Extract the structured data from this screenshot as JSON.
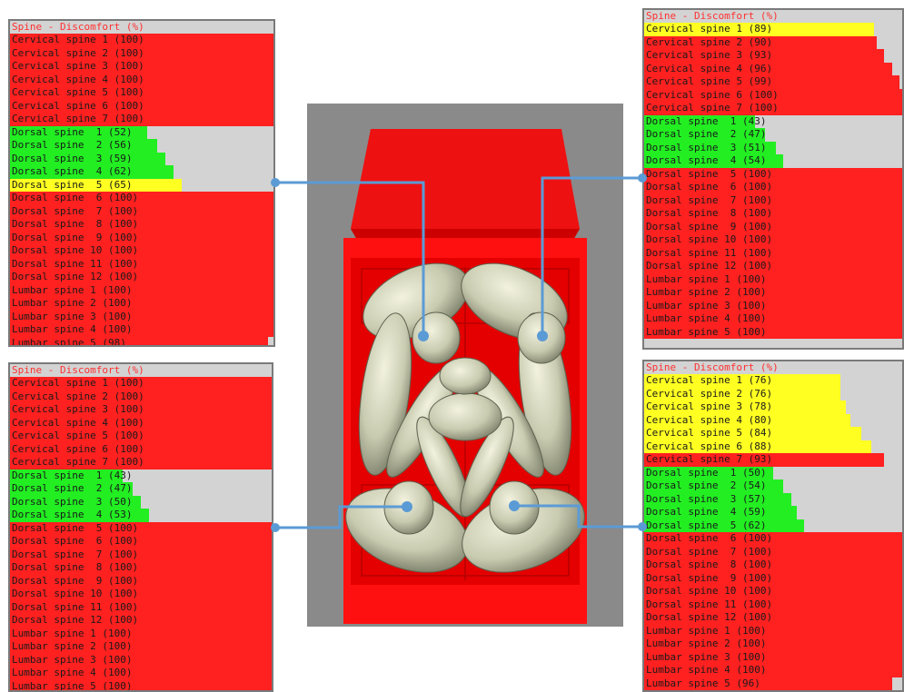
{
  "colors": {
    "red": "#ff2020",
    "yellow": "#ffff22",
    "green": "#22ee22",
    "title_text": "#ff3030",
    "panel_bg": "#d3d3d3",
    "connector": "#5b9bd5",
    "scene_bg": "#8a8a8a"
  },
  "panels": [
    {
      "title": "Spine - Discomfort (%)",
      "rows": [
        {
          "label": "Cervical spine 1 (100)",
          "value": 100
        },
        {
          "label": "Cervical spine 2 (100)",
          "value": 100
        },
        {
          "label": "Cervical spine 3 (100)",
          "value": 100
        },
        {
          "label": "Cervical spine 4 (100)",
          "value": 100
        },
        {
          "label": "Cervical spine 5 (100)",
          "value": 100
        },
        {
          "label": "Cervical spine 6 (100)",
          "value": 100
        },
        {
          "label": "Cervical spine 7 (100)",
          "value": 100
        },
        {
          "label": "Dorsal spine  1 (52)",
          "value": 52
        },
        {
          "label": "Dorsal spine  2 (56)",
          "value": 56
        },
        {
          "label": "Dorsal spine  3 (59)",
          "value": 59
        },
        {
          "label": "Dorsal spine  4 (62)",
          "value": 62
        },
        {
          "label": "Dorsal spine  5 (65)",
          "value": 65
        },
        {
          "label": "Dorsal spine  6 (100)",
          "value": 100
        },
        {
          "label": "Dorsal spine  7 (100)",
          "value": 100
        },
        {
          "label": "Dorsal spine  8 (100)",
          "value": 100
        },
        {
          "label": "Dorsal spine  9 (100)",
          "value": 100
        },
        {
          "label": "Dorsal spine 10 (100)",
          "value": 100
        },
        {
          "label": "Dorsal spine 11 (100)",
          "value": 100
        },
        {
          "label": "Dorsal spine 12 (100)",
          "value": 100
        },
        {
          "label": "Lumbar spine 1 (100)",
          "value": 100
        },
        {
          "label": "Lumbar spine 2 (100)",
          "value": 100
        },
        {
          "label": "Lumbar spine 3 (100)",
          "value": 100
        },
        {
          "label": "Lumbar spine 4 (100)",
          "value": 100
        },
        {
          "label": "Lumbar spine 5 (98)",
          "value": 98
        }
      ]
    },
    {
      "title": "Spine - Discomfort (%)",
      "rows": [
        {
          "label": "Cervical spine 1 (89)",
          "value": 89
        },
        {
          "label": "Cervical spine 2 (90)",
          "value": 90
        },
        {
          "label": "Cervical spine 3 (93)",
          "value": 93
        },
        {
          "label": "Cervical spine 4 (96)",
          "value": 96
        },
        {
          "label": "Cervical spine 5 (99)",
          "value": 99
        },
        {
          "label": "Cervical spine 6 (100)",
          "value": 100
        },
        {
          "label": "Cervical spine 7 (100)",
          "value": 100
        },
        {
          "label": "Dorsal spine  1 (43)",
          "value": 43
        },
        {
          "label": "Dorsal spine  2 (47)",
          "value": 47
        },
        {
          "label": "Dorsal spine  3 (51)",
          "value": 51
        },
        {
          "label": "Dorsal spine  4 (54)",
          "value": 54
        },
        {
          "label": "Dorsal spine  5 (100)",
          "value": 100
        },
        {
          "label": "Dorsal spine  6 (100)",
          "value": 100
        },
        {
          "label": "Dorsal spine  7 (100)",
          "value": 100
        },
        {
          "label": "Dorsal spine  8 (100)",
          "value": 100
        },
        {
          "label": "Dorsal spine  9 (100)",
          "value": 100
        },
        {
          "label": "Dorsal spine 10 (100)",
          "value": 100
        },
        {
          "label": "Dorsal spine 11 (100)",
          "value": 100
        },
        {
          "label": "Dorsal spine 12 (100)",
          "value": 100
        },
        {
          "label": "Lumbar spine 1 (100)",
          "value": 100
        },
        {
          "label": "Lumbar spine 2 (100)",
          "value": 100
        },
        {
          "label": "Lumbar spine 3 (100)",
          "value": 100
        },
        {
          "label": "Lumbar spine 4 (100)",
          "value": 100
        },
        {
          "label": "Lumbar spine 5 (100)",
          "value": 100
        }
      ]
    },
    {
      "title": "Spine - Discomfort (%)",
      "rows": [
        {
          "label": "Cervical spine 1 (100)",
          "value": 100
        },
        {
          "label": "Cervical spine 2 (100)",
          "value": 100
        },
        {
          "label": "Cervical spine 3 (100)",
          "value": 100
        },
        {
          "label": "Cervical spine 4 (100)",
          "value": 100
        },
        {
          "label": "Cervical spine 5 (100)",
          "value": 100
        },
        {
          "label": "Cervical spine 6 (100)",
          "value": 100
        },
        {
          "label": "Cervical spine 7 (100)",
          "value": 100
        },
        {
          "label": "Dorsal spine  1 (43)",
          "value": 43
        },
        {
          "label": "Dorsal spine  2 (47)",
          "value": 47
        },
        {
          "label": "Dorsal spine  3 (50)",
          "value": 50
        },
        {
          "label": "Dorsal spine  4 (53)",
          "value": 53
        },
        {
          "label": "Dorsal spine  5 (100)",
          "value": 100
        },
        {
          "label": "Dorsal spine  6 (100)",
          "value": 100
        },
        {
          "label": "Dorsal spine  7 (100)",
          "value": 100
        },
        {
          "label": "Dorsal spine  8 (100)",
          "value": 100
        },
        {
          "label": "Dorsal spine  9 (100)",
          "value": 100
        },
        {
          "label": "Dorsal spine 10 (100)",
          "value": 100
        },
        {
          "label": "Dorsal spine 11 (100)",
          "value": 100
        },
        {
          "label": "Dorsal spine 12 (100)",
          "value": 100
        },
        {
          "label": "Lumbar spine 1 (100)",
          "value": 100
        },
        {
          "label": "Lumbar spine 2 (100)",
          "value": 100
        },
        {
          "label": "Lumbar spine 3 (100)",
          "value": 100
        },
        {
          "label": "Lumbar spine 4 (100)",
          "value": 100
        },
        {
          "label": "Lumbar spine 5 (100)",
          "value": 100
        }
      ]
    },
    {
      "title": "Spine - Discomfort (%)",
      "rows": [
        {
          "label": "Cervical spine 1 (76)",
          "value": 76
        },
        {
          "label": "Cervical spine 2 (76)",
          "value": 76
        },
        {
          "label": "Cervical spine 3 (78)",
          "value": 78
        },
        {
          "label": "Cervical spine 4 (80)",
          "value": 80
        },
        {
          "label": "Cervical spine 5 (84)",
          "value": 84
        },
        {
          "label": "Cervical spine 6 (88)",
          "value": 88
        },
        {
          "label": "Cervical spine 7 (93)",
          "value": 93
        },
        {
          "label": "Dorsal spine  1 (50)",
          "value": 50
        },
        {
          "label": "Dorsal spine  2 (54)",
          "value": 54
        },
        {
          "label": "Dorsal spine  3 (57)",
          "value": 57
        },
        {
          "label": "Dorsal spine  4 (59)",
          "value": 59
        },
        {
          "label": "Dorsal spine  5 (62)",
          "value": 62
        },
        {
          "label": "Dorsal spine  6 (100)",
          "value": 100
        },
        {
          "label": "Dorsal spine  7 (100)",
          "value": 100
        },
        {
          "label": "Dorsal spine  8 (100)",
          "value": 100
        },
        {
          "label": "Dorsal spine  9 (100)",
          "value": 100
        },
        {
          "label": "Dorsal spine 10 (100)",
          "value": 100
        },
        {
          "label": "Dorsal spine 11 (100)",
          "value": 100
        },
        {
          "label": "Dorsal spine 12 (100)",
          "value": 100
        },
        {
          "label": "Lumbar spine 1 (100)",
          "value": 100
        },
        {
          "label": "Lumbar spine 2 (100)",
          "value": 100
        },
        {
          "label": "Lumbar spine 3 (100)",
          "value": 100
        },
        {
          "label": "Lumbar spine 4 (100)",
          "value": 100
        },
        {
          "label": "Lumbar spine 5 (96)",
          "value": 96
        }
      ]
    }
  ]
}
